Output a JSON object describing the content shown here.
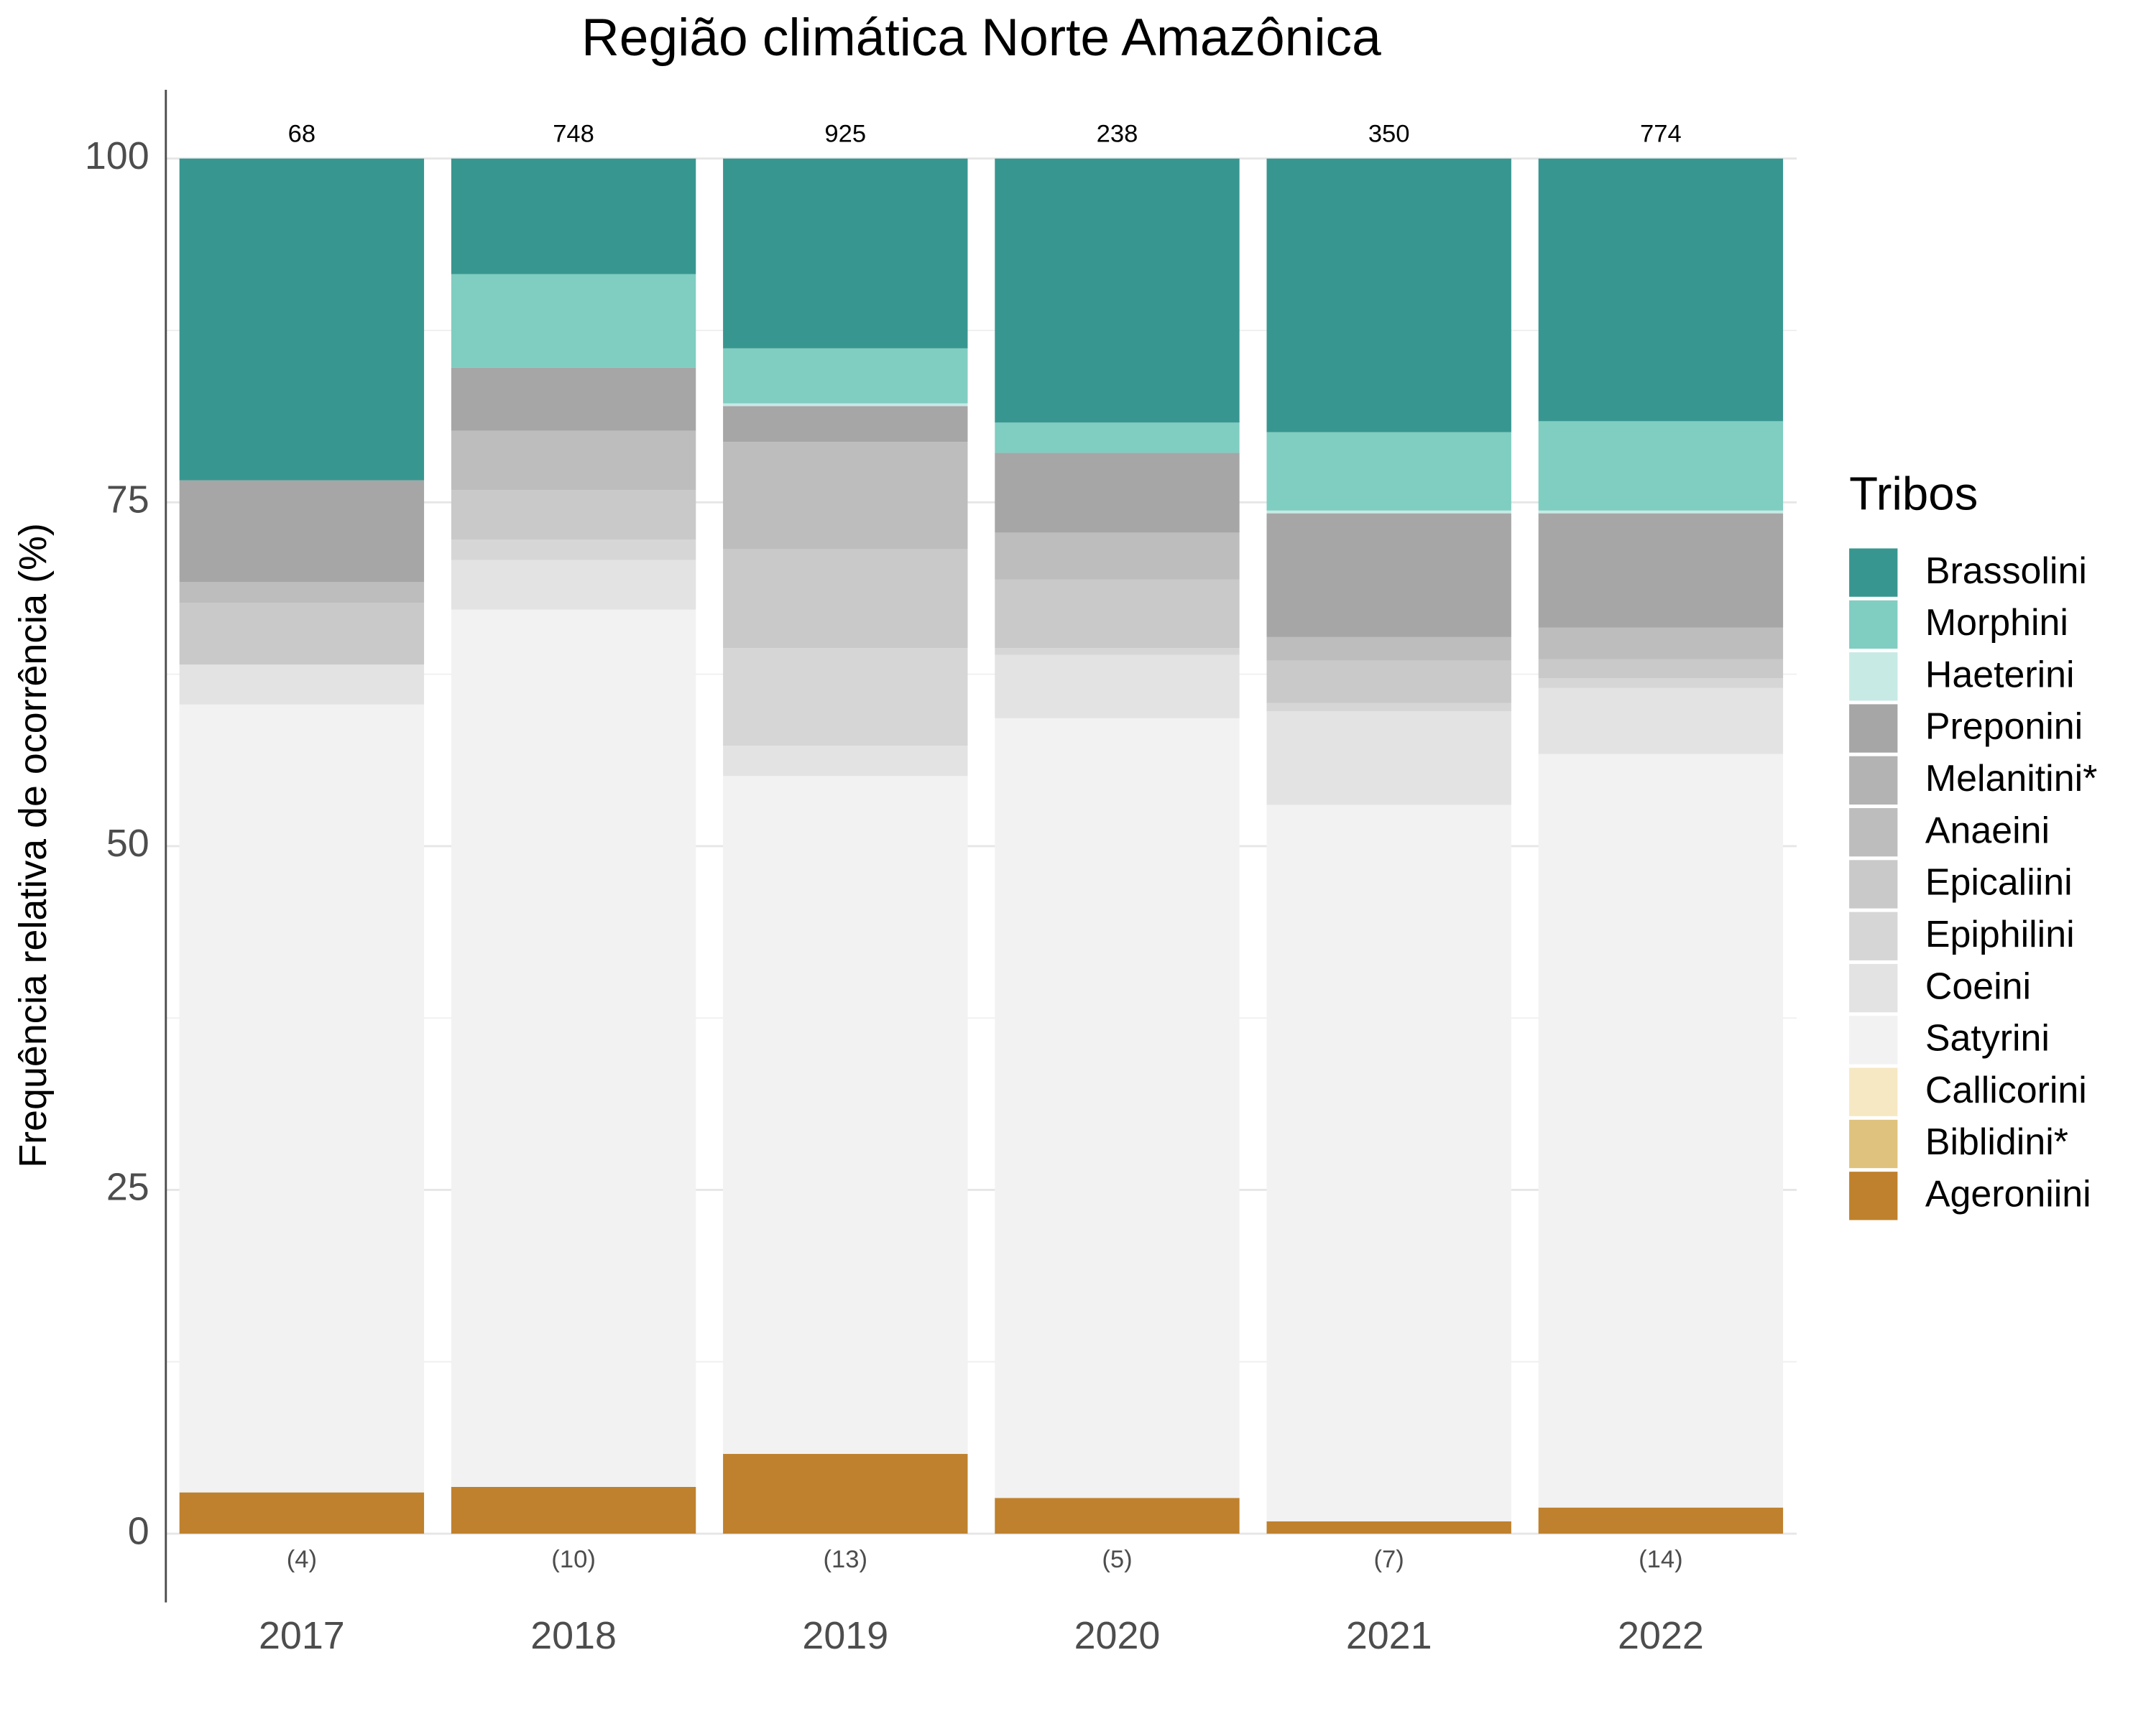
{
  "chart_data": {
    "type": "stacked_bar",
    "title": "Região climática Norte Amazônica",
    "y_label": "Frequência relativa de ocorrência (%)",
    "legend_title": "Tribos",
    "legend_position": "right",
    "categories": [
      "2017",
      "2018",
      "2019",
      "2020",
      "2021",
      "2022"
    ],
    "top_labels": [
      68,
      748,
      925,
      238,
      350,
      774
    ],
    "bottom_labels": [
      "(4)",
      "(10)",
      "(13)",
      "(5)",
      "(7)",
      "(14)"
    ],
    "ylim": [
      -5,
      105
    ],
    "yticks": [
      0,
      25,
      50,
      75,
      100
    ],
    "minor_yticks": [
      12.5,
      37.5,
      62.5,
      87.5
    ],
    "grid": true,
    "series": [
      {
        "name": "Brassolini",
        "color": "#389690",
        "values": [
          23.4,
          8.4,
          13.8,
          19.2,
          19.9,
          19.1
        ]
      },
      {
        "name": "Morphini",
        "color": "#80cdc1",
        "values": [
          0,
          6.8,
          4.0,
          2.2,
          5.7,
          6.5
        ]
      },
      {
        "name": "Haeterini",
        "color": "#c7eae5",
        "values": [
          0,
          0,
          0.2,
          0,
          0.2,
          0.2
        ]
      },
      {
        "name": "Preponini",
        "color": "#a6a6a6",
        "values": [
          7.4,
          4.6,
          2.6,
          5.8,
          9.0,
          8.3
        ]
      },
      {
        "name": "Melanitini*",
        "color": "#b3b3b3",
        "values": [
          0,
          0,
          0,
          0,
          0,
          0
        ]
      },
      {
        "name": "Anaeini",
        "color": "#bdbdbd",
        "values": [
          1.5,
          4.3,
          7.8,
          3.4,
          1.7,
          2.3
        ]
      },
      {
        "name": "Epicaliini",
        "color": "#c9c9c9",
        "values": [
          4.5,
          3.6,
          7.2,
          5.0,
          3.1,
          1.4
        ]
      },
      {
        "name": "Epiphilini",
        "color": "#d6d6d6",
        "values": [
          0,
          1.5,
          7.1,
          0.5,
          0.6,
          0.7
        ]
      },
      {
        "name": "Coeini",
        "color": "#e3e3e3",
        "values": [
          2.9,
          3.6,
          2.2,
          4.6,
          6.8,
          4.8
        ]
      },
      {
        "name": "Satyrini",
        "color": "#f2f2f2",
        "values": [
          57.3,
          63.8,
          49.3,
          56.7,
          52.1,
          54.8
        ]
      },
      {
        "name": "Callicorini",
        "color": "#f6e8c3",
        "values": [
          0,
          0,
          0,
          0,
          0,
          0
        ]
      },
      {
        "name": "Biblidini*",
        "color": "#dfc27d",
        "values": [
          0,
          0,
          0,
          0,
          0,
          0
        ]
      },
      {
        "name": "Ageroniini",
        "color": "#bf812d",
        "values": [
          3.0,
          3.4,
          5.8,
          2.6,
          0.9,
          1.9
        ]
      }
    ]
  }
}
